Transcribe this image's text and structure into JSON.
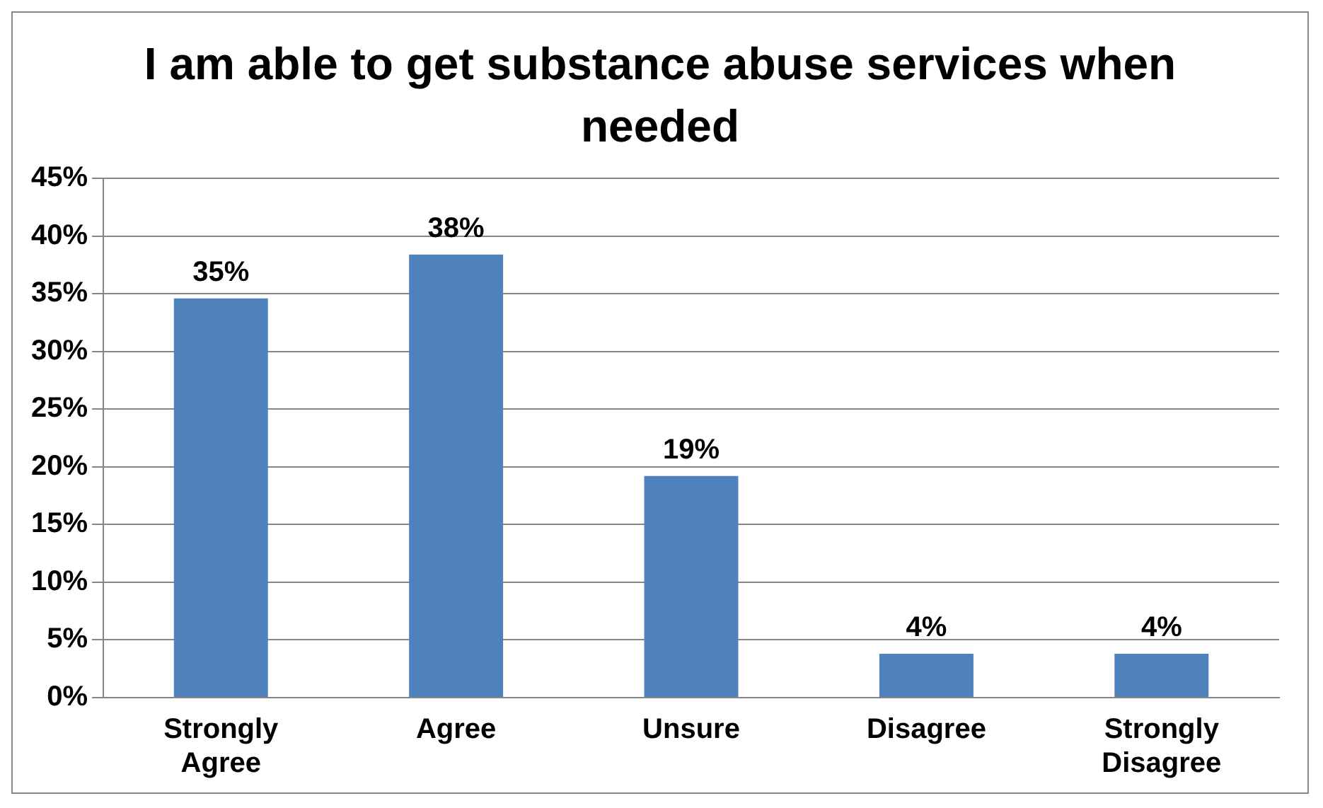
{
  "chart_data": {
    "type": "bar",
    "title": "I am able to get substance abuse services when needed",
    "categories": [
      "Strongly Agree",
      "Agree",
      "Unsure",
      "Disagree",
      "Strongly Disagree"
    ],
    "values": [
      34.6,
      38.4,
      19.2,
      3.8,
      3.8
    ],
    "value_labels": [
      "35%",
      "38%",
      "19%",
      "4%",
      "4%"
    ],
    "color": "#4f81bd",
    "ylim": [
      0,
      45
    ],
    "yticks": [
      {
        "value": 0,
        "label": "0%"
      },
      {
        "value": 5,
        "label": "5%"
      },
      {
        "value": 10,
        "label": "10%"
      },
      {
        "value": 15,
        "label": "15%"
      },
      {
        "value": 20,
        "label": "20%"
      },
      {
        "value": 25,
        "label": "25%"
      },
      {
        "value": 30,
        "label": "30%"
      },
      {
        "value": 35,
        "label": "35%"
      },
      {
        "value": 40,
        "label": "40%"
      },
      {
        "value": 45,
        "label": "45%"
      }
    ],
    "grid": "y",
    "legend": false
  }
}
